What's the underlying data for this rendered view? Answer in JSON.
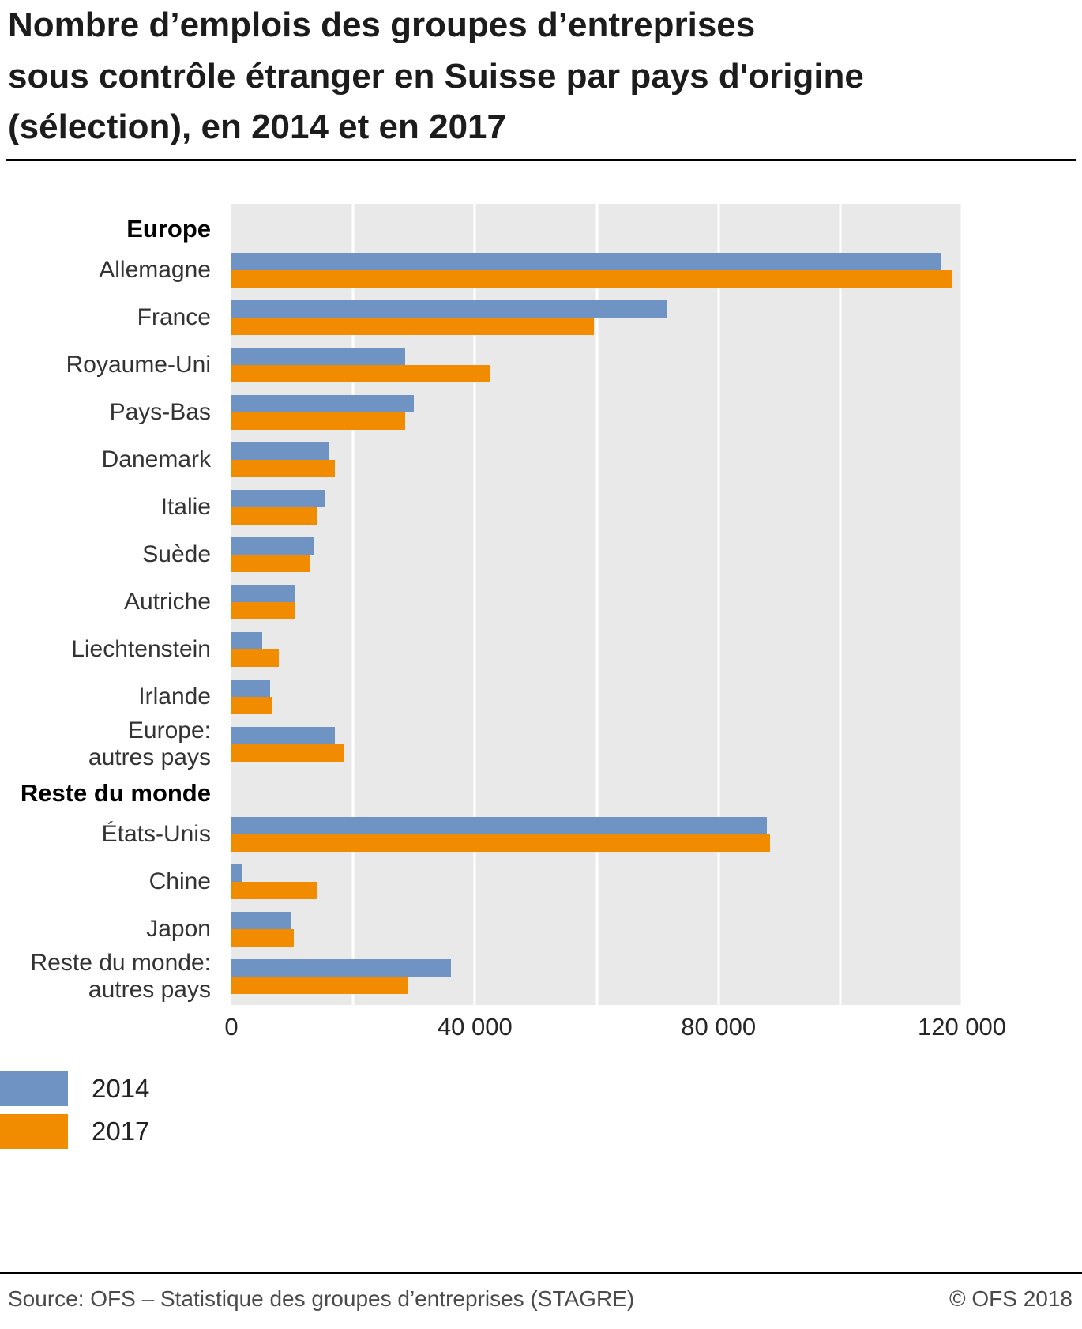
{
  "title": "Nombre d’emplois des groupes d’entreprises\nsous contrôle étranger en Suisse par pays d'origine\n(sélection), en 2014 et en 2017",
  "legend": {
    "items": [
      {
        "label": "2014",
        "color": "#6f94c3"
      },
      {
        "label": "2017",
        "color": "#f18c00"
      }
    ]
  },
  "footer": {
    "source": "Source: OFS – Statistique des groupes d’entreprises (STAGRE)",
    "copyright": "© OFS 2018"
  },
  "chart_data": {
    "type": "bar",
    "orientation": "horizontal",
    "title": "Nombre d’emplois des groupes d’entreprises sous contrôle étranger en Suisse par pays d'origine (sélection), en 2014 et en 2017",
    "series_names": [
      "2014",
      "2017"
    ],
    "colors": {
      "2014": "#6f94c3",
      "2017": "#f18c00"
    },
    "plot_bg": "#e9e9e9",
    "gridline_color": "#ffffff",
    "xlim": [
      0,
      120000
    ],
    "gridline_step": 20000,
    "ticks": [
      {
        "value": 0,
        "label": "0"
      },
      {
        "value": 40000,
        "label": "40 000"
      },
      {
        "value": 80000,
        "label": "80 000"
      },
      {
        "value": 120000,
        "label": "120 000"
      }
    ],
    "groups": [
      {
        "header": "Europe",
        "rows": [
          {
            "label": "Allemagne",
            "values": [
              116500,
              118500
            ]
          },
          {
            "label": "France",
            "values": [
              71500,
              59500
            ]
          },
          {
            "label": "Royaume-Uni",
            "values": [
              28500,
              42500
            ]
          },
          {
            "label": "Pays-Bas",
            "values": [
              30000,
              28500
            ]
          },
          {
            "label": "Danemark",
            "values": [
              16000,
              17000
            ]
          },
          {
            "label": "Italie",
            "values": [
              15400,
              14200
            ]
          },
          {
            "label": "Suède",
            "values": [
              13500,
              13000
            ]
          },
          {
            "label": "Autriche",
            "values": [
              10500,
              10400
            ]
          },
          {
            "label": "Liechtenstein",
            "values": [
              5000,
              7800
            ]
          },
          {
            "label": "Irlande",
            "values": [
              6400,
              6700
            ]
          },
          {
            "label": "Europe:\nautres pays",
            "values": [
              17000,
              18400
            ]
          }
        ]
      },
      {
        "header": "Reste du monde",
        "rows": [
          {
            "label": "États-Unis",
            "values": [
              88000,
              88500
            ]
          },
          {
            "label": "Chine",
            "values": [
              1800,
              14000
            ]
          },
          {
            "label": "Japon",
            "values": [
              9800,
              10200
            ]
          },
          {
            "label": "Reste du monde:\nautres pays",
            "values": [
              36000,
              29000
            ]
          }
        ]
      }
    ]
  }
}
